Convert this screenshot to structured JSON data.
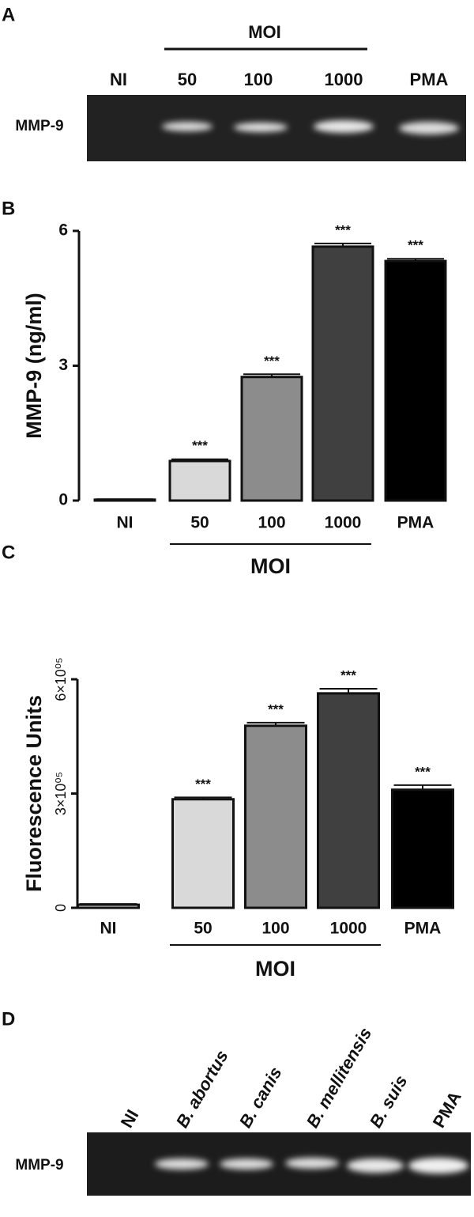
{
  "gel_a": {
    "panel": "A",
    "group_label": "MOI",
    "lanes": [
      "NI",
      "50",
      "100",
      "1000",
      "PMA"
    ],
    "row_label": "MMP-9"
  },
  "chart_data": [
    {
      "type": "bar",
      "panel": "B",
      "ylabel": "MMP-9 (ng/ml)",
      "categories": [
        "NI",
        "50",
        "100",
        "1000",
        "PMA"
      ],
      "group_label": "MOI",
      "values": [
        0.02,
        0.88,
        2.75,
        5.65,
        5.33
      ],
      "errors": [
        0.01,
        0.04,
        0.06,
        0.07,
        0.05
      ],
      "significance": [
        null,
        "***",
        "***",
        "***",
        "***"
      ],
      "colors": [
        "#ffffff",
        "#d9d9d9",
        "#8c8c8c",
        "#404040",
        "#000000"
      ],
      "ylim": [
        0,
        6
      ],
      "yticks": [
        0,
        3,
        6
      ]
    },
    {
      "type": "bar",
      "panel": "C",
      "ylabel": "Fluorescence Units",
      "categories": [
        "NI",
        "50",
        "100",
        "1000",
        "PMA"
      ],
      "group_label": "MOI",
      "values": [
        8000,
        285000,
        478000,
        563000,
        310000
      ],
      "errors": [
        2000,
        5000,
        8000,
        12000,
        12000
      ],
      "significance": [
        null,
        "***",
        "***",
        "***",
        "***"
      ],
      "colors": [
        "#ffffff",
        "#d9d9d9",
        "#8c8c8c",
        "#404040",
        "#000000"
      ],
      "ylim": [
        0,
        600000
      ],
      "yticks": [
        0,
        {
          "value": 300000,
          "label": "3×10⁰⁵"
        },
        {
          "value": 600000,
          "label": "6×10⁰⁵"
        }
      ]
    }
  ],
  "gel_d": {
    "panel": "D",
    "lanes": [
      "NI",
      "B. abortus",
      "B. canis",
      "B. mellitensis",
      "B. suis",
      "PMA"
    ],
    "row_label": "MMP-9"
  }
}
